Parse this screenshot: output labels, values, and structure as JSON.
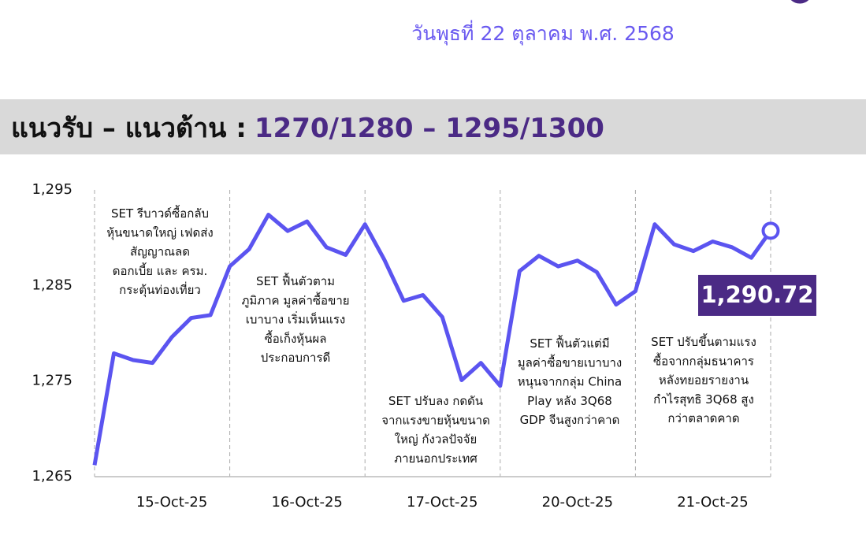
{
  "header": {
    "date": "วันพุธที่ 22 ตุลาคม พ.ศ. 2568",
    "band_label": "แนวรับ – แนวต้าน :",
    "band_value": "1270/1280 – 1295/1300"
  },
  "chart_data": {
    "type": "line",
    "categories": [
      null,
      null,
      null,
      null,
      "15-Oct-25",
      null,
      null,
      null,
      null,
      null,
      null,
      "16-Oct-25",
      null,
      null,
      null,
      null,
      null,
      null,
      "17-Oct-25",
      null,
      null,
      null,
      null,
      null,
      null,
      "20-Oct-25",
      null,
      null,
      null,
      null,
      null,
      null,
      "21-Oct-25",
      null,
      null,
      null
    ],
    "series": [
      {
        "color": "#5b54f0",
        "values": [
          1266.2,
          1277.9,
          1277.2,
          1276.9,
          1279.6,
          1281.6,
          1281.9,
          1287.0,
          1288.8,
          1292.4,
          1290.7,
          1291.7,
          1289.0,
          1288.2,
          1291.4,
          1287.7,
          1283.4,
          1284.0,
          1281.7,
          1275.1,
          1276.9,
          1274.5,
          1286.5,
          1288.1,
          1287.0,
          1287.6,
          1286.4,
          1283.0,
          1284.4,
          1291.4,
          1289.3,
          1288.6,
          1289.6,
          1289.0,
          1287.9,
          1290.72
        ],
        "value_labels": [
          null,
          null,
          null,
          null,
          null,
          null,
          null,
          null,
          null,
          null,
          null,
          null,
          null,
          null,
          null,
          null,
          null,
          null,
          null,
          null,
          null,
          null,
          null,
          null,
          null,
          null,
          null,
          null,
          null,
          null,
          null,
          null,
          null,
          null,
          null,
          "1,290.72"
        ]
      }
    ],
    "ylim": [
      1265,
      1295
    ],
    "yticks": [
      {
        "value": 1265,
        "label": "1,265"
      },
      {
        "value": 1275,
        "label": "1,275"
      },
      {
        "value": 1285,
        "label": "1,285"
      },
      {
        "value": 1295,
        "label": "1,295"
      }
    ],
    "annotations": [
      [
        "SET รีบาวด์ซื้อกลับ",
        "หุ้นขนาดใหญ่ เฟดส่ง",
        "สัญญาณลด",
        "ดอกเบี้ย และ ครม.",
        "กระตุ้นท่องเที่ยว"
      ],
      [
        "SET ฟื้นตัวตาม",
        "ภูมิภาค มูลค่าซื้อขาย",
        "เบาบาง เริ่มเห็นแรง",
        "ซื้อเก็งหุ้นผล",
        "ประกอบการดี"
      ],
      [
        "SET ปรับลง กดดัน",
        "จากแรงขายหุ้นขนาด",
        "ใหญ่ กังวลปัจจัย",
        "ภายนอกประเทศ"
      ],
      [
        "SET ฟื้นตัวแต่มี",
        "มูลค่าซื้อขายเบาบาง",
        "หนุนจากกลุ่ม China",
        "Play หลัง 3Q68",
        "GDP จีนสูงกว่าคาด"
      ],
      [
        "SET ปรับขึ้นตามแรง",
        "ซื้อจากกลุ่มธนาคาร",
        "หลังทยอยรายงาน",
        "กำไรสุทธิ 3Q68 สูง",
        "กว่าตลาดคาด"
      ]
    ]
  }
}
